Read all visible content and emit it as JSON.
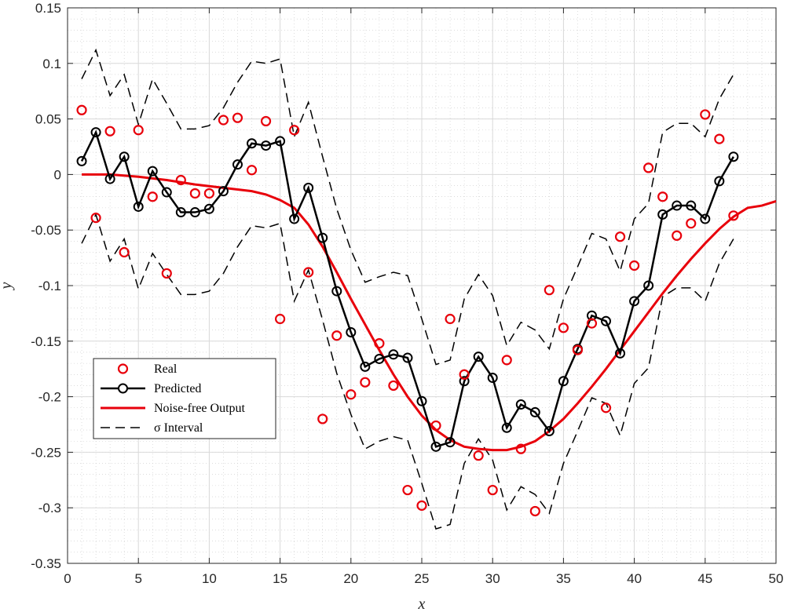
{
  "chart_data": {
    "type": "line",
    "xlabel": "x",
    "ylabel": "y",
    "xlim": [
      0,
      50
    ],
    "ylim": [
      -0.35,
      0.15
    ],
    "xticks": [
      0,
      5,
      10,
      15,
      20,
      25,
      30,
      35,
      40,
      45,
      50
    ],
    "xtick_labels": [
      "0",
      "5",
      "10",
      "15",
      "20",
      "25",
      "30",
      "35",
      "40",
      "45",
      "50"
    ],
    "yticks": [
      0.15,
      0.1,
      0.05,
      0,
      -0.05,
      -0.1,
      -0.15,
      -0.2,
      -0.25,
      -0.3,
      -0.35
    ],
    "ytick_labels": [
      "0.15",
      "0.1",
      "0.05",
      "0",
      "-0.05",
      "-0.1",
      "-0.15",
      "-0.2",
      "-0.25",
      "-0.3",
      "-0.35"
    ],
    "grid": true,
    "minor_grid": true,
    "legend_position": "bottom-left",
    "series": [
      {
        "name": "Real",
        "style": "markers",
        "color": "#e8000b",
        "x": [
          1,
          2,
          3,
          4,
          5,
          6,
          7,
          8,
          9,
          10,
          11,
          12,
          13,
          14,
          15,
          16,
          17,
          18,
          19,
          20,
          21,
          22,
          23,
          24,
          25,
          26,
          27,
          28,
          29,
          30,
          31,
          32,
          33,
          34,
          35,
          36,
          37,
          38,
          39,
          40,
          41,
          42,
          43,
          44,
          45,
          46,
          47
        ],
        "y": [
          0.058,
          -0.039,
          0.039,
          -0.07,
          0.04,
          -0.02,
          -0.089,
          -0.005,
          -0.017,
          -0.017,
          0.049,
          0.051,
          0.004,
          0.048,
          -0.13,
          0.04,
          -0.088,
          -0.22,
          -0.145,
          -0.198,
          -0.187,
          -0.152,
          -0.19,
          -0.284,
          -0.298,
          -0.226,
          -0.13,
          -0.18,
          -0.253,
          -0.284,
          -0.167,
          -0.247,
          -0.303,
          -0.104,
          -0.138,
          -0.158,
          -0.134,
          -0.21,
          -0.056,
          -0.082,
          0.006,
          -0.02,
          -0.055,
          -0.044,
          0.054,
          0.032,
          -0.037
        ]
      },
      {
        "name": "Predicted",
        "style": "line-markers",
        "color": "#000000",
        "x": [
          1,
          2,
          3,
          4,
          5,
          6,
          7,
          8,
          9,
          10,
          11,
          12,
          13,
          14,
          15,
          16,
          17,
          18,
          19,
          20,
          21,
          22,
          23,
          24,
          25,
          26,
          27,
          28,
          29,
          30,
          31,
          32,
          33,
          34,
          35,
          36,
          37,
          38,
          39,
          40,
          41,
          42,
          43,
          44,
          45,
          46,
          47
        ],
        "y": [
          0.012,
          0.038,
          -0.004,
          0.016,
          -0.029,
          0.003,
          -0.016,
          -0.034,
          -0.034,
          -0.031,
          -0.015,
          0.009,
          0.028,
          0.026,
          0.03,
          -0.04,
          -0.012,
          -0.057,
          -0.105,
          -0.142,
          -0.173,
          -0.166,
          -0.162,
          -0.165,
          -0.204,
          -0.245,
          -0.241,
          -0.186,
          -0.164,
          -0.183,
          -0.228,
          -0.207,
          -0.214,
          -0.231,
          -0.186,
          -0.157,
          -0.127,
          -0.132,
          -0.161,
          -0.114,
          -0.1,
          -0.036,
          -0.028,
          -0.028,
          -0.04,
          -0.006,
          0.016
        ]
      },
      {
        "name": "Noise-free Output",
        "style": "line",
        "color": "#e8000b",
        "x": [
          1,
          3,
          5,
          7,
          9,
          11,
          13,
          14,
          15,
          16,
          17,
          18,
          19,
          20,
          21,
          22,
          23,
          24,
          25,
          26,
          27,
          28,
          29,
          30,
          31,
          32,
          33,
          34,
          35,
          36,
          37,
          38,
          39,
          40,
          41,
          42,
          43,
          44,
          45,
          46,
          47,
          48,
          49,
          50
        ],
        "y": [
          0.0,
          0.0,
          -0.002,
          -0.005,
          -0.009,
          -0.012,
          -0.015,
          -0.018,
          -0.023,
          -0.03,
          -0.045,
          -0.065,
          -0.088,
          -0.112,
          -0.135,
          -0.158,
          -0.18,
          -0.2,
          -0.217,
          -0.23,
          -0.239,
          -0.245,
          -0.247,
          -0.248,
          -0.248,
          -0.245,
          -0.24,
          -0.231,
          -0.22,
          -0.206,
          -0.191,
          -0.175,
          -0.158,
          -0.141,
          -0.124,
          -0.107,
          -0.091,
          -0.076,
          -0.062,
          -0.049,
          -0.038,
          -0.03,
          -0.028,
          -0.024
        ]
      },
      {
        "name": "σ Interval",
        "style": "dashed",
        "color": "#000000",
        "x": [
          1,
          2,
          3,
          4,
          5,
          6,
          7,
          8,
          9,
          10,
          11,
          12,
          13,
          14,
          15,
          16,
          17,
          18,
          19,
          20,
          21,
          22,
          23,
          24,
          25,
          26,
          27,
          28,
          29,
          30,
          31,
          32,
          33,
          34,
          35,
          36,
          37,
          38,
          39,
          40,
          41,
          42,
          43,
          44,
          45,
          46,
          47
        ],
        "upper": [
          0.086,
          0.112,
          0.071,
          0.09,
          0.045,
          0.086,
          0.064,
          0.041,
          0.041,
          0.044,
          0.06,
          0.083,
          0.102,
          0.1,
          0.104,
          0.034,
          0.065,
          0.016,
          -0.031,
          -0.068,
          -0.097,
          -0.092,
          -0.088,
          -0.091,
          -0.13,
          -0.171,
          -0.167,
          -0.112,
          -0.09,
          -0.109,
          -0.154,
          -0.133,
          -0.14,
          -0.157,
          -0.112,
          -0.083,
          -0.053,
          -0.058,
          -0.087,
          -0.04,
          -0.026,
          0.038,
          0.046,
          0.046,
          0.034,
          0.068,
          0.09
        ],
        "lower": [
          -0.062,
          -0.036,
          -0.078,
          -0.058,
          -0.103,
          -0.071,
          -0.09,
          -0.108,
          -0.108,
          -0.105,
          -0.089,
          -0.065,
          -0.046,
          -0.048,
          -0.044,
          -0.114,
          -0.086,
          -0.131,
          -0.179,
          -0.216,
          -0.247,
          -0.24,
          -0.236,
          -0.239,
          -0.278,
          -0.319,
          -0.315,
          -0.26,
          -0.238,
          -0.257,
          -0.302,
          -0.281,
          -0.288,
          -0.305,
          -0.26,
          -0.231,
          -0.201,
          -0.206,
          -0.235,
          -0.188,
          -0.174,
          -0.11,
          -0.102,
          -0.102,
          -0.114,
          -0.08,
          -0.058
        ]
      }
    ]
  }
}
